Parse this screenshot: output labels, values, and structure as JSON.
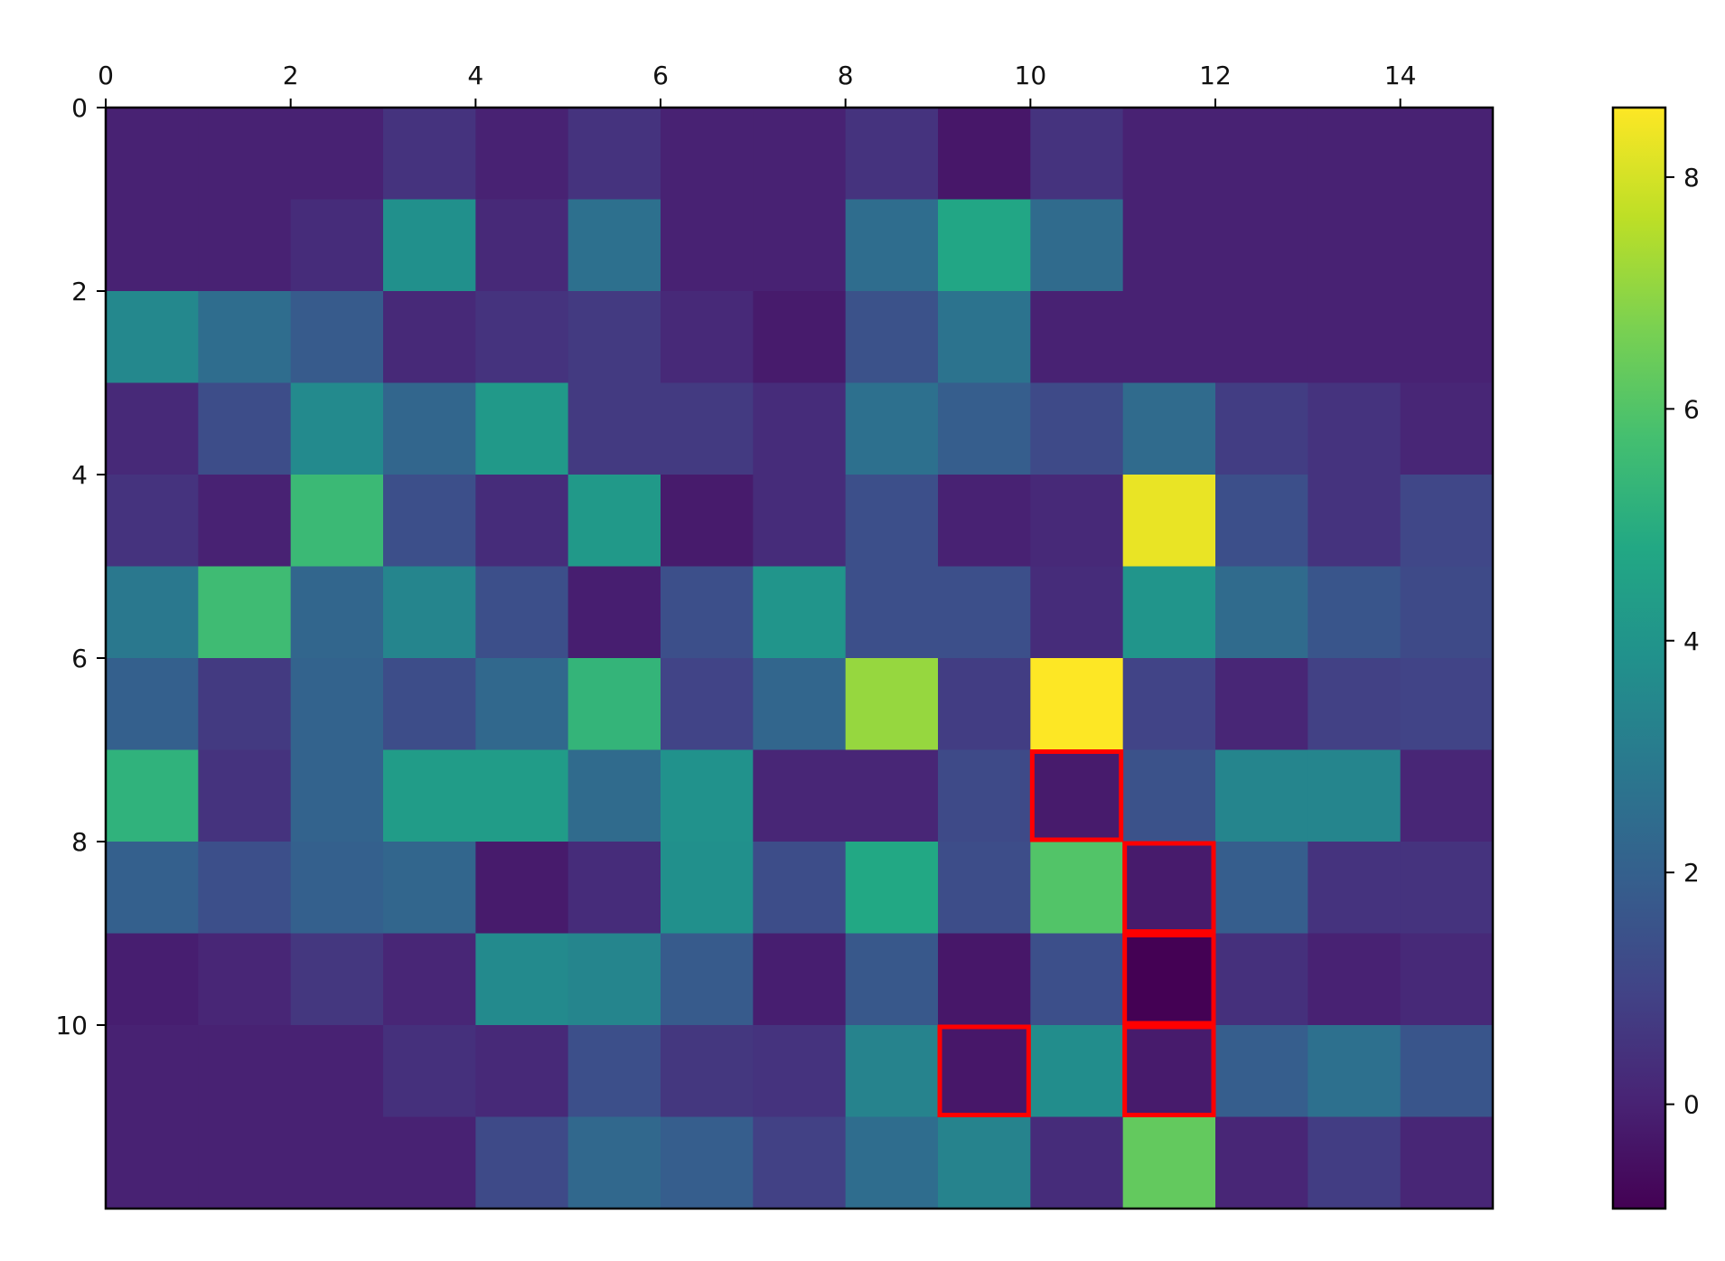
{
  "chart_data": {
    "type": "heatmap",
    "title": "",
    "xlabel": "",
    "ylabel": "",
    "x_ticks": [
      "0",
      "2",
      "4",
      "6",
      "8",
      "10",
      "12",
      "14"
    ],
    "y_ticks": [
      "0",
      "2",
      "4",
      "6",
      "8",
      "10"
    ],
    "x_tick_values": [
      0,
      2,
      4,
      6,
      8,
      10,
      12,
      14
    ],
    "y_tick_values": [
      0,
      2,
      4,
      6,
      8,
      10
    ],
    "colorbar": {
      "colormap": "viridis",
      "vmin": -0.9,
      "vmax": 8.6,
      "ticks": [
        "0",
        "2",
        "4",
        "6",
        "8"
      ],
      "tick_values": [
        0,
        2,
        4,
        6,
        8
      ]
    },
    "values": [
      [
        0,
        0,
        0,
        0.5,
        0,
        0.5,
        0,
        0,
        0.5,
        -0.3,
        0.5,
        0,
        0,
        0,
        0
      ],
      [
        0,
        0,
        0.3,
        3.8,
        0.2,
        2.6,
        0,
        0,
        2.5,
        4.7,
        2.4,
        0,
        0,
        0,
        0
      ],
      [
        3.5,
        2.5,
        1.8,
        0.2,
        0.5,
        0.7,
        0.2,
        -0.2,
        1.5,
        2.7,
        0,
        0,
        0,
        0,
        0
      ],
      [
        0.2,
        1.3,
        3.6,
        2.2,
        4.2,
        0.7,
        0.7,
        0.3,
        2.6,
        1.9,
        1.2,
        2.4,
        0.8,
        0.5,
        0.1
      ],
      [
        0.5,
        0,
        5.5,
        1.4,
        0.3,
        4.2,
        -0.2,
        0.3,
        1.4,
        0,
        0.2,
        8.3,
        1.4,
        0.5,
        1.1
      ],
      [
        2.9,
        5.6,
        2.2,
        3.4,
        1.4,
        -0.1,
        1.4,
        4.0,
        1.4,
        1.4,
        0.3,
        4.0,
        2.4,
        1.6,
        1.2
      ],
      [
        2.0,
        0.7,
        2.1,
        1.3,
        2.3,
        5.3,
        1.0,
        2.2,
        7.1,
        0.8,
        8.6,
        1.0,
        0.1,
        0.9,
        1.0
      ],
      [
        5.2,
        0.5,
        2.1,
        4.3,
        4.3,
        2.4,
        3.9,
        0.1,
        0.1,
        1.2,
        -0.2,
        1.5,
        3.4,
        3.4,
        0.1
      ],
      [
        2.0,
        1.4,
        2.0,
        2.2,
        -0.2,
        0.3,
        3.8,
        1.3,
        4.8,
        1.3,
        6.0,
        -0.2,
        1.9,
        0.5,
        0.5
      ],
      [
        -0.1,
        0.1,
        0.6,
        0.1,
        3.6,
        3.4,
        1.8,
        -0.1,
        1.7,
        -0.3,
        1.4,
        -0.9,
        0.4,
        0.0,
        0.2
      ],
      [
        0,
        0,
        0,
        0.4,
        0.2,
        1.4,
        0.6,
        0.5,
        3.3,
        -0.3,
        3.7,
        -0.2,
        1.9,
        2.6,
        1.6
      ],
      [
        0,
        0,
        0,
        0,
        1.2,
        2.3,
        1.9,
        0.9,
        2.5,
        3.3,
        0.3,
        6.3,
        0.1,
        0.8,
        0.1
      ]
    ],
    "highlighted_cells": [
      {
        "row": 7,
        "col": 10
      },
      {
        "row": 8,
        "col": 11
      },
      {
        "row": 9,
        "col": 11
      },
      {
        "row": 10,
        "col": 9
      },
      {
        "row": 10,
        "col": 11
      }
    ],
    "highlight_color": "#ff0000",
    "grid": false,
    "legend": "none"
  }
}
